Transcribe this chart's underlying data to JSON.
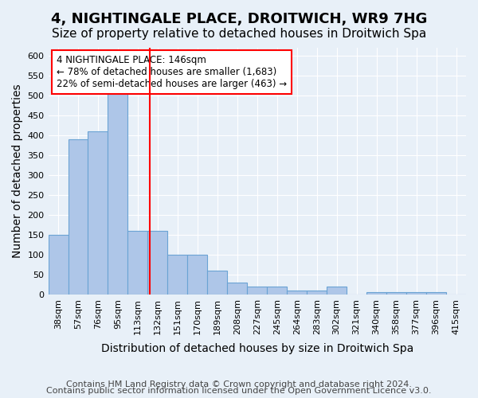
{
  "title": "4, NIGHTINGALE PLACE, DROITWICH, WR9 7HG",
  "subtitle": "Size of property relative to detached houses in Droitwich Spa",
  "xlabel": "Distribution of detached houses by size in Droitwich Spa",
  "ylabel": "Number of detached properties",
  "bin_labels": [
    "38sqm",
    "57sqm",
    "76sqm",
    "95sqm",
    "113sqm",
    "132sqm",
    "151sqm",
    "170sqm",
    "189sqm",
    "208sqm",
    "227sqm",
    "245sqm",
    "264sqm",
    "283sqm",
    "302sqm",
    "321sqm",
    "340sqm",
    "358sqm",
    "377sqm",
    "396sqm",
    "415sqm"
  ],
  "bar_heights": [
    150,
    390,
    410,
    520,
    160,
    160,
    100,
    100,
    60,
    30,
    20,
    20,
    10,
    10,
    20,
    0,
    5,
    5,
    5,
    5,
    0
  ],
  "bar_color": "#aec6e8",
  "bar_edgecolor": "#6aa3d4",
  "vline_x": 4.6,
  "vline_color": "red",
  "annotation_text": "4 NIGHTINGALE PLACE: 146sqm\n← 78% of detached houses are smaller (1,683)\n22% of semi-detached houses are larger (463) →",
  "annotation_box_color": "#ffffff",
  "annotation_box_edgecolor": "red",
  "ylim": [
    0,
    620
  ],
  "yticks": [
    0,
    50,
    100,
    150,
    200,
    250,
    300,
    350,
    400,
    450,
    500,
    550,
    600
  ],
  "footer_line1": "Contains HM Land Registry data © Crown copyright and database right 2024.",
  "footer_line2": "Contains public sector information licensed under the Open Government Licence v3.0.",
  "background_color": "#e8f0f8",
  "plot_bg_color": "#e8f0f8",
  "title_fontsize": 13,
  "subtitle_fontsize": 11,
  "axis_label_fontsize": 10,
  "tick_fontsize": 8,
  "footer_fontsize": 8
}
